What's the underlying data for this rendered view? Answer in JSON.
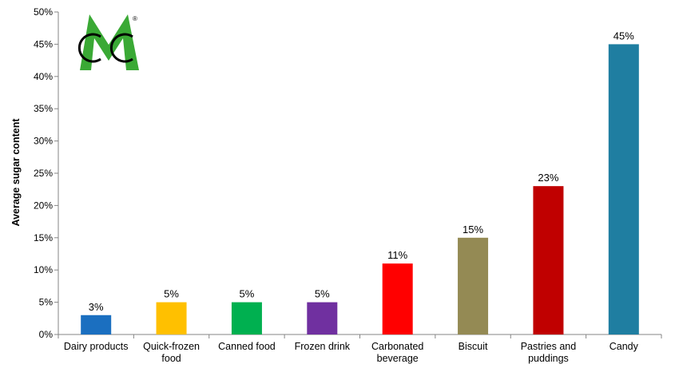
{
  "chart_data": {
    "type": "bar",
    "title": "",
    "xlabel": "",
    "ylabel": "Average sugar content",
    "ylim": [
      0,
      50
    ],
    "yticks": [
      "0%",
      "5%",
      "10%",
      "15%",
      "20%",
      "25%",
      "30%",
      "35%",
      "40%",
      "45%",
      "50%"
    ],
    "grid": false,
    "legend": "none",
    "categories": [
      [
        "Dairy products"
      ],
      [
        "Quick-frozen",
        "food"
      ],
      [
        "Canned food"
      ],
      [
        "Frozen drink"
      ],
      [
        "Carbonated",
        "beverage"
      ],
      [
        "Biscuit"
      ],
      [
        "Pastries and",
        "puddings"
      ],
      [
        "Candy"
      ]
    ],
    "values": [
      3,
      5,
      5,
      5,
      11,
      15,
      23,
      45
    ],
    "data_labels": [
      "3%",
      "5%",
      "5%",
      "5%",
      "11%",
      "15%",
      "23%",
      "45%"
    ],
    "colors": [
      "#1b6fc0",
      "#ffc000",
      "#00b050",
      "#7030a0",
      "#ff0000",
      "#948a54",
      "#c00000",
      "#1f7ea1"
    ]
  },
  "logo": {
    "registered_mark": "®",
    "colors": [
      "#3aa935",
      "#000000"
    ]
  }
}
